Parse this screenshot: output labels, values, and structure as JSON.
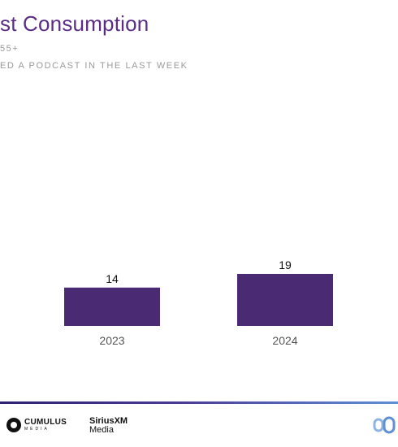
{
  "header": {
    "title": "st Consumption",
    "subtitle_1": "55+",
    "subtitle_2": "ED A PODCAST IN THE LAST WEEK"
  },
  "chart_data": {
    "type": "bar",
    "categories": [
      "2023",
      "2024"
    ],
    "values": [
      14,
      19
    ],
    "ylim": [
      0,
      19
    ],
    "grid": false,
    "bar_color": "#4a2a73"
  },
  "footer": {
    "cumulus_name": "CUMULUS",
    "cumulus_sub": "MEDIA",
    "sirius_name": "SiriusXM",
    "sirius_sub": "Media"
  }
}
